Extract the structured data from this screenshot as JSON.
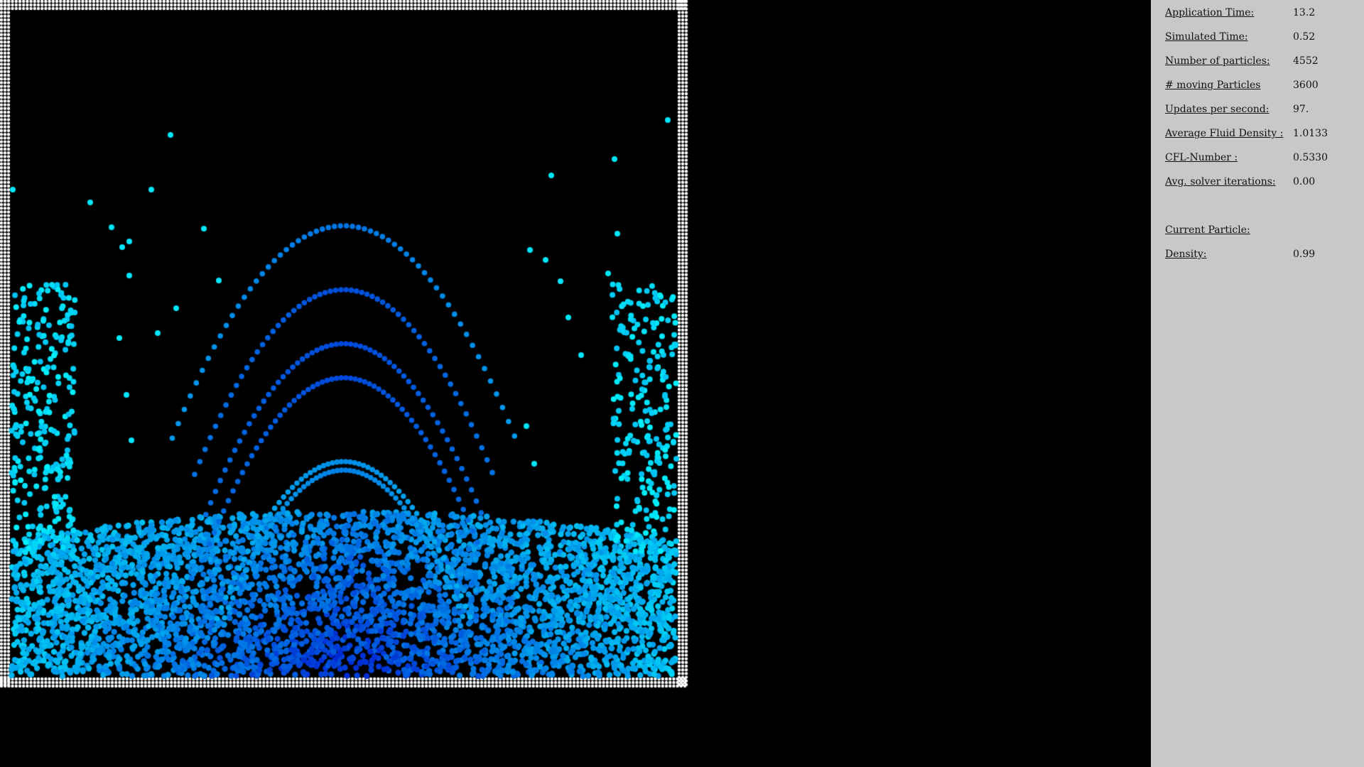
{
  "simulation": {
    "background": "#000000",
    "boundary_color": "#ffffff",
    "color_low_density": "#00ffff",
    "color_high_density": "#0000cc"
  },
  "stats": [
    {
      "label": "Application Time:",
      "value": "13.2"
    },
    {
      "label": "Simulated Time:",
      "value": "0.52"
    },
    {
      "label": "Number of particles:",
      "value": "4552"
    },
    {
      "label": "# moving Particles",
      "value": "3600"
    },
    {
      "label": "Updates per second:",
      "value": "97."
    },
    {
      "label": "Average Fluid Density :",
      "value": "1.0133"
    },
    {
      "label": "CFL-Number :",
      "value": "0.5330"
    },
    {
      "label": "Avg. solver iterations:",
      "value": "0.00"
    }
  ],
  "current_particle": {
    "title": "Current Particle:",
    "density_label": "Density:",
    "density_value": "0.99"
  },
  "sidebar_bg": "#c8c8c8"
}
